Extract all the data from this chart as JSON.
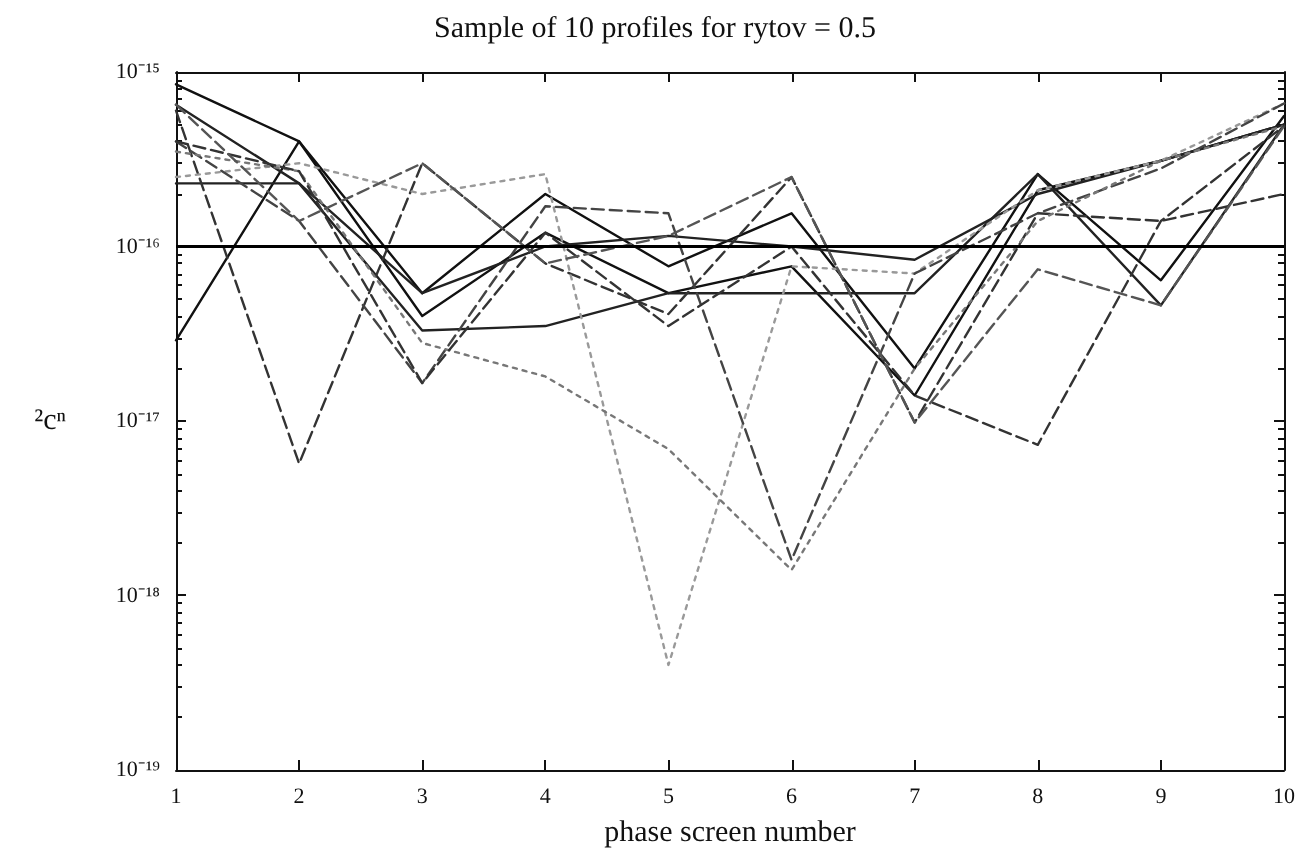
{
  "chart_data": {
    "type": "line",
    "title": "Sample of 10 profiles for rytov = 0.5",
    "xlabel": "phase screen number",
    "ylabel": "²cⁿ",
    "x": [
      1,
      2,
      3,
      4,
      5,
      6,
      7,
      8,
      9,
      10
    ],
    "series": [
      {
        "color": "#111111",
        "line_style": "solid",
        "values": [
          8.5e-16,
          4e-16,
          5.4e-17,
          2e-16,
          7.7e-17,
          1.55e-16,
          2e-17,
          2.6e-16,
          6.4e-17,
          5.6e-16
        ]
      },
      {
        "color": "#111111",
        "line_style": "solid",
        "values": [
          2.9e-17,
          4e-16,
          4e-17,
          1.2e-16,
          5.4e-17,
          7.7e-17,
          1.4e-17,
          2.1e-16,
          3.1e-16,
          5e-16
        ]
      },
      {
        "color": "#222222",
        "line_style": "solid",
        "values": [
          6.5e-16,
          2.3e-16,
          5.4e-17,
          1e-16,
          1.15e-16,
          1e-16,
          8.4e-17,
          2e-16,
          3.1e-16,
          5e-16
        ]
      },
      {
        "color": "#222222",
        "line_style": "solid",
        "values": [
          2.3e-16,
          2.3e-16,
          3.3e-17,
          3.5e-17,
          5.4e-17,
          5.4e-17,
          5.4e-17,
          2.6e-16,
          4.6e-17,
          5e-16
        ]
      },
      {
        "color": "#333333",
        "line_style": "dashed",
        "values": [
          6e-16,
          5.7e-18,
          3e-16,
          8e-17,
          4.1e-17,
          2.5e-16,
          9.8e-18,
          1.55e-16,
          1.4e-16,
          2e-16
        ]
      },
      {
        "color": "#999999",
        "line_style": "dotted",
        "values": [
          2.5e-16,
          3e-16,
          2e-16,
          2.6e-16,
          4e-19,
          7.7e-17,
          7e-17,
          2.1e-16,
          3.1e-16,
          6.6e-16
        ]
      },
      {
        "color": "#444444",
        "line_style": "dashed",
        "values": [
          4e-16,
          1.4e-16,
          1.65e-17,
          1.7e-16,
          1.55e-16,
          1.6e-18,
          7e-17,
          1.55e-16,
          2.8e-16,
          6.6e-16
        ]
      },
      {
        "color": "#777777",
        "line_style": "dotted",
        "values": [
          3.5e-16,
          2.7e-16,
          2.8e-17,
          1.8e-17,
          6.9e-18,
          1.4e-18,
          2e-17,
          1.4e-16,
          3.1e-16,
          4.9e-16
        ]
      },
      {
        "color": "#333333",
        "line_style": "dashed",
        "values": [
          4e-16,
          2.7e-16,
          1.65e-17,
          1.2e-16,
          3.5e-17,
          1e-16,
          1.4e-17,
          7.3e-18,
          1.4e-16,
          4.9e-16
        ]
      },
      {
        "color": "#555555",
        "line_style": "dashed",
        "values": [
          6.5e-16,
          1.4e-16,
          3e-16,
          8e-17,
          1.15e-16,
          2.5e-16,
          9.8e-18,
          7.4e-17,
          4.6e-17,
          4.9e-16
        ]
      }
    ],
    "xlim": [
      1,
      10
    ],
    "xticks": [
      1,
      2,
      3,
      4,
      5,
      6,
      7,
      8,
      9,
      10
    ],
    "log": "y",
    "ylim": [
      1e-19,
      1e-15
    ],
    "yticks": [
      {
        "value": 1e-19,
        "label": "10⁻¹⁹"
      },
      {
        "value": 1e-18,
        "label": "10⁻¹⁸"
      },
      {
        "value": 1e-17,
        "label": "10⁻¹⁷"
      },
      {
        "value": 1e-16,
        "label": "10⁻¹⁶"
      },
      {
        "value": 1e-15,
        "label": "10⁻¹⁵"
      }
    ],
    "ref_lines": [
      {
        "axis": "y",
        "value": 1e-16,
        "color": "#000000",
        "line_style": "solid"
      }
    ],
    "grid": false,
    "marker": "none"
  }
}
